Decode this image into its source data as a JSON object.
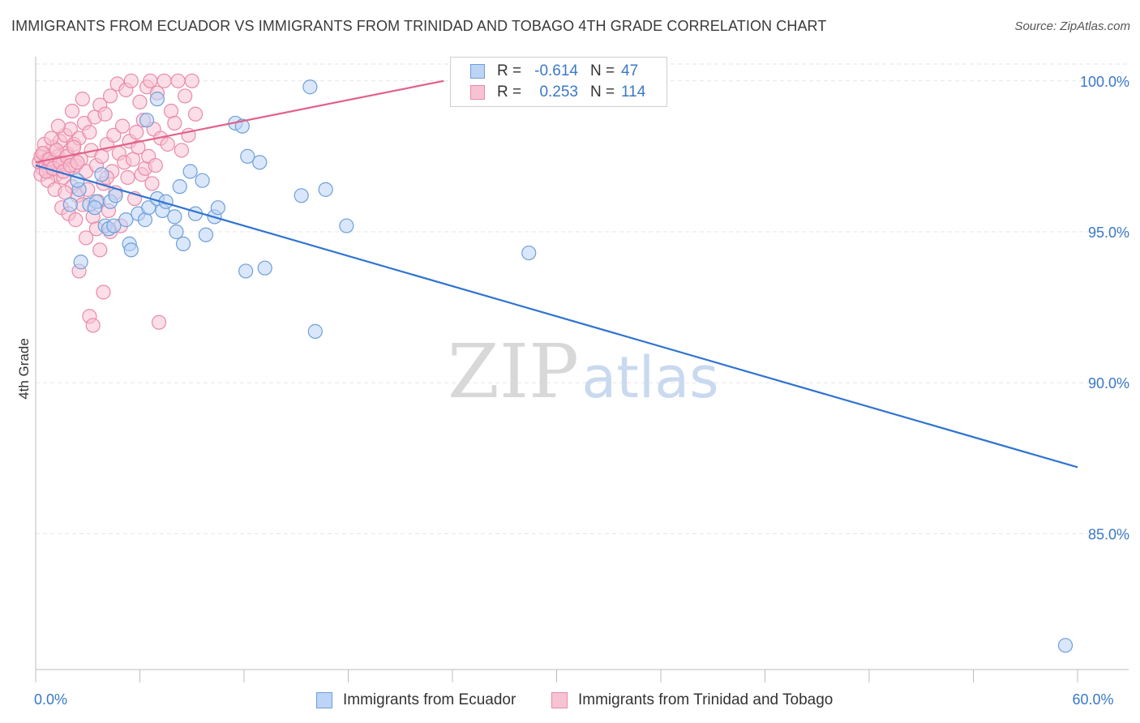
{
  "header": {
    "title": "IMMIGRANTS FROM ECUADOR VS IMMIGRANTS FROM TRINIDAD AND TOBAGO 4TH GRADE CORRELATION CHART",
    "source": "Source: ZipAtlas.com"
  },
  "watermark": {
    "part1": "ZIP",
    "part2": "atlas"
  },
  "colors": {
    "ecuador_fill": "#bcd4f5",
    "ecuador_stroke": "#6f9fd8",
    "ecuador_line": "#2f74d0",
    "trinidad_fill": "#f7c3d3",
    "trinidad_stroke": "#e98aa8",
    "trinidad_line": "#e2608a",
    "tick_label": "#3b78c8",
    "grid": "#e6e6e6"
  },
  "legend": {
    "r_label": "R =",
    "n_label": "N =",
    "rows": [
      {
        "series": "ecuador",
        "r": "-0.614",
        "n": "47"
      },
      {
        "series": "trinidad",
        "r": "0.253",
        "n": "114"
      }
    ]
  },
  "bottom_legend": {
    "items": [
      {
        "series": "ecuador",
        "label": "Immigrants from Ecuador"
      },
      {
        "series": "trinidad",
        "label": "Immigrants from Trinidad and Tobago"
      }
    ]
  },
  "chart_data": {
    "type": "scatter",
    "ylabel": "4th Grade",
    "xlim": [
      0,
      60
    ],
    "ylim": [
      80.5,
      100.8
    ],
    "x_tick_labels": [
      {
        "value": 0,
        "label": "0.0%"
      },
      {
        "value": 60,
        "label": "60.0%"
      }
    ],
    "x_minor_ticks": [
      0,
      6,
      12,
      18,
      24,
      30,
      36,
      42,
      48,
      54,
      60
    ],
    "y_ticks": [
      {
        "value": 100,
        "label": "100.0%"
      },
      {
        "value": 95,
        "label": "95.0%"
      },
      {
        "value": 90,
        "label": "90.0%"
      },
      {
        "value": 85,
        "label": "85.0%"
      }
    ],
    "grid": true,
    "legend_position": "top-center",
    "series": [
      {
        "key": "ecuador",
        "name": "Immigrants from Ecuador",
        "r": -0.614,
        "n": 47,
        "trend": {
          "x": [
            0,
            60
          ],
          "y": [
            97.2,
            87.2
          ]
        },
        "points": [
          [
            2.0,
            95.9
          ],
          [
            2.6,
            94.0
          ],
          [
            2.5,
            96.4
          ],
          [
            3.1,
            95.9
          ],
          [
            3.5,
            96.0
          ],
          [
            3.4,
            95.8
          ],
          [
            2.4,
            96.7
          ],
          [
            3.8,
            96.9
          ],
          [
            4.0,
            95.2
          ],
          [
            4.2,
            95.1
          ],
          [
            4.5,
            95.2
          ],
          [
            4.3,
            96.0
          ],
          [
            4.6,
            96.2
          ],
          [
            5.2,
            95.4
          ],
          [
            5.4,
            94.6
          ],
          [
            5.5,
            94.4
          ],
          [
            5.9,
            95.6
          ],
          [
            6.3,
            95.4
          ],
          [
            6.5,
            95.8
          ],
          [
            7.0,
            96.1
          ],
          [
            7.3,
            95.7
          ],
          [
            7.5,
            96.0
          ],
          [
            8.0,
            95.5
          ],
          [
            8.1,
            95.0
          ],
          [
            8.3,
            96.5
          ],
          [
            8.5,
            94.6
          ],
          [
            9.2,
            95.6
          ],
          [
            9.6,
            96.7
          ],
          [
            9.8,
            94.9
          ],
          [
            10.3,
            95.5
          ],
          [
            10.5,
            95.8
          ],
          [
            11.5,
            98.6
          ],
          [
            11.9,
            98.5
          ],
          [
            12.1,
            93.7
          ],
          [
            12.9,
            97.3
          ],
          [
            13.2,
            93.8
          ],
          [
            15.3,
            96.2
          ],
          [
            15.8,
            99.8
          ],
          [
            16.1,
            91.7
          ],
          [
            16.7,
            96.4
          ],
          [
            17.9,
            95.2
          ],
          [
            6.4,
            98.7
          ],
          [
            7.0,
            99.4
          ],
          [
            8.9,
            97.0
          ],
          [
            12.2,
            97.5
          ],
          [
            28.4,
            94.3
          ],
          [
            59.3,
            81.3
          ]
        ]
      },
      {
        "key": "trinidad",
        "name": "Immigrants from Trinidad and Tobago",
        "r": 0.253,
        "n": 114,
        "trend": {
          "x": [
            0,
            23.5
          ],
          "y": [
            97.3,
            100.0
          ]
        },
        "points": [
          [
            0.2,
            97.3
          ],
          [
            0.3,
            97.5
          ],
          [
            0.4,
            97.1
          ],
          [
            0.5,
            97.6
          ],
          [
            0.6,
            97.2
          ],
          [
            0.7,
            97.4
          ],
          [
            0.8,
            97.0
          ],
          [
            0.9,
            97.3
          ],
          [
            1.0,
            97.8
          ],
          [
            1.1,
            97.2
          ],
          [
            1.2,
            96.9
          ],
          [
            1.3,
            97.5
          ],
          [
            1.4,
            98.0
          ],
          [
            1.5,
            97.3
          ],
          [
            1.6,
            96.8
          ],
          [
            1.7,
            98.2
          ],
          [
            1.8,
            97.6
          ],
          [
            1.9,
            97.1
          ],
          [
            2.0,
            98.4
          ],
          [
            2.1,
            96.5
          ],
          [
            2.2,
            97.9
          ],
          [
            2.3,
            97.2
          ],
          [
            2.4,
            96.2
          ],
          [
            2.5,
            98.1
          ],
          [
            2.6,
            97.4
          ],
          [
            2.7,
            95.9
          ],
          [
            2.8,
            98.6
          ],
          [
            2.9,
            97.0
          ],
          [
            3.0,
            96.4
          ],
          [
            3.1,
            98.3
          ],
          [
            3.2,
            97.7
          ],
          [
            3.3,
            95.5
          ],
          [
            3.4,
            98.8
          ],
          [
            3.5,
            97.2
          ],
          [
            3.6,
            96.0
          ],
          [
            3.7,
            99.2
          ],
          [
            3.8,
            97.5
          ],
          [
            3.9,
            96.6
          ],
          [
            4.0,
            98.9
          ],
          [
            4.1,
            97.9
          ],
          [
            4.2,
            95.7
          ],
          [
            4.3,
            99.5
          ],
          [
            4.4,
            97.0
          ],
          [
            4.5,
            98.2
          ],
          [
            4.6,
            96.3
          ],
          [
            4.7,
            99.9
          ],
          [
            4.8,
            97.6
          ],
          [
            4.9,
            95.2
          ],
          [
            5.0,
            98.5
          ],
          [
            5.1,
            97.3
          ],
          [
            5.2,
            99.7
          ],
          [
            5.3,
            96.8
          ],
          [
            5.4,
            98.0
          ],
          [
            5.5,
            100.0
          ],
          [
            5.6,
            97.4
          ],
          [
            5.7,
            96.1
          ],
          [
            5.8,
            98.3
          ],
          [
            5.9,
            97.8
          ],
          [
            6.0,
            99.3
          ],
          [
            6.1,
            96.9
          ],
          [
            6.2,
            98.7
          ],
          [
            6.3,
            97.1
          ],
          [
            6.4,
            99.8
          ],
          [
            6.5,
            97.5
          ],
          [
            6.6,
            100.0
          ],
          [
            6.7,
            96.6
          ],
          [
            6.8,
            98.4
          ],
          [
            6.9,
            97.2
          ],
          [
            7.0,
            99.6
          ],
          [
            7.2,
            98.1
          ],
          [
            7.4,
            100.0
          ],
          [
            7.6,
            97.9
          ],
          [
            7.8,
            99.0
          ],
          [
            8.0,
            98.6
          ],
          [
            8.2,
            100.0
          ],
          [
            8.4,
            97.7
          ],
          [
            8.6,
            99.5
          ],
          [
            8.8,
            98.2
          ],
          [
            9.0,
            100.0
          ],
          [
            9.2,
            98.9
          ],
          [
            0.3,
            96.9
          ],
          [
            0.5,
            97.9
          ],
          [
            0.7,
            96.7
          ],
          [
            0.9,
            98.1
          ],
          [
            1.1,
            96.4
          ],
          [
            1.3,
            98.5
          ],
          [
            1.5,
            95.8
          ],
          [
            1.7,
            96.3
          ],
          [
            1.9,
            95.6
          ],
          [
            2.1,
            99.0
          ],
          [
            2.3,
            95.4
          ],
          [
            2.5,
            93.7
          ],
          [
            2.7,
            99.4
          ],
          [
            2.9,
            94.8
          ],
          [
            3.1,
            92.2
          ],
          [
            3.3,
            91.9
          ],
          [
            3.5,
            95.1
          ],
          [
            3.7,
            94.4
          ],
          [
            3.9,
            93.0
          ],
          [
            4.1,
            96.8
          ],
          [
            4.3,
            95.0
          ],
          [
            7.1,
            92.0
          ],
          [
            0.4,
            97.6
          ],
          [
            0.6,
            97.0
          ],
          [
            0.8,
            97.4
          ],
          [
            1.0,
            97.1
          ],
          [
            1.2,
            97.7
          ],
          [
            1.4,
            97.3
          ],
          [
            1.6,
            97.0
          ],
          [
            1.8,
            97.5
          ],
          [
            2.0,
            97.2
          ],
          [
            2.2,
            97.8
          ],
          [
            24.9,
            100.0
          ],
          [
            2.4,
            97.3
          ]
        ]
      }
    ]
  }
}
